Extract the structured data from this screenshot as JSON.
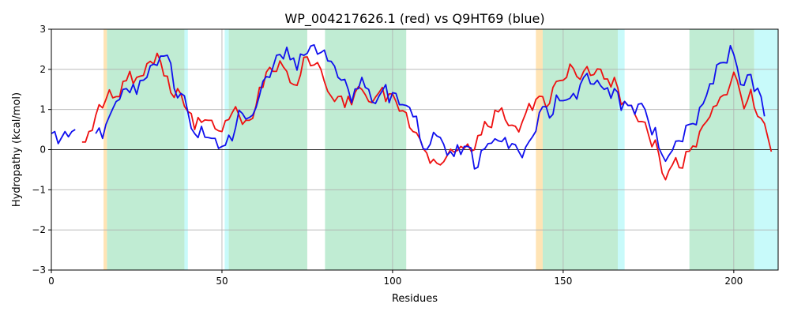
{
  "chart_data": {
    "type": "line",
    "title": "WP_004217626.1 (red) vs Q9HT69 (blue)",
    "xlabel": "Residues",
    "ylabel": "Hydropathy (kcal/mol)",
    "xlim": [
      0,
      213
    ],
    "ylim": [
      -3,
      3
    ],
    "xticks": [
      0,
      50,
      100,
      150,
      200
    ],
    "yticks": [
      -3,
      -2,
      -1,
      0,
      1,
      2,
      3
    ],
    "grid": true,
    "zero_line": true,
    "shaded_regions": [
      {
        "x0": 15.3,
        "x1": 16.3,
        "color": "#ffe4b5"
      },
      {
        "x0": 16.3,
        "x1": 39.0,
        "color": "#c0ecd3"
      },
      {
        "x0": 39.0,
        "x1": 40.0,
        "color": "#c8fafa"
      },
      {
        "x0": 50.8,
        "x1": 52.0,
        "color": "#c8fafa"
      },
      {
        "x0": 52.0,
        "x1": 75.0,
        "color": "#c0ecd3"
      },
      {
        "x0": 80.2,
        "x1": 104.0,
        "color": "#c0ecd3"
      },
      {
        "x0": 142.0,
        "x1": 144.0,
        "color": "#ffe4b5"
      },
      {
        "x0": 144.0,
        "x1": 166.0,
        "color": "#c0ecd3"
      },
      {
        "x0": 166.0,
        "x1": 168.0,
        "color": "#c8fafa"
      },
      {
        "x0": 187.0,
        "x1": 206.0,
        "color": "#c0ecd3"
      },
      {
        "x0": 206.0,
        "x1": 213.0,
        "color": "#c8fafa"
      }
    ],
    "series": [
      {
        "color": "#ee1111",
        "x_start": 9,
        "values": [
          0.19,
          0.19,
          0.45,
          0.48,
          0.85,
          1.12,
          1.04,
          1.25,
          1.49,
          1.29,
          1.32,
          1.32,
          1.7,
          1.72,
          1.95,
          1.64,
          1.8,
          1.83,
          1.85,
          2.14,
          2.2,
          2.13,
          2.4,
          2.2,
          1.84,
          1.83,
          1.42,
          1.3,
          1.52,
          1.38,
          1.08,
          0.95,
          0.9,
          0.5,
          0.8,
          0.68,
          0.74,
          0.73,
          0.73,
          0.52,
          0.47,
          0.45,
          0.72,
          0.75,
          0.92,
          1.07,
          0.86,
          0.63,
          0.73,
          0.73,
          0.78,
          1.1,
          1.55,
          1.55,
          1.93,
          2.05,
          1.95,
          1.95,
          2.21,
          2.06,
          1.95,
          1.67,
          1.62,
          1.6,
          1.86,
          2.3,
          2.31,
          2.09,
          2.11,
          2.17,
          2.0,
          1.7,
          1.45,
          1.33,
          1.2,
          1.32,
          1.33,
          1.05,
          1.33,
          1.12,
          1.42,
          1.57,
          1.5,
          1.37,
          1.2,
          1.17,
          1.31,
          1.42,
          1.55,
          1.2,
          1.39,
          1.39,
          1.2,
          0.96,
          0.97,
          0.92,
          0.55,
          0.45,
          0.42,
          0.27,
          0.02,
          -0.08,
          -0.34,
          -0.24,
          -0.34,
          -0.38,
          -0.3,
          -0.15,
          0.01,
          -0.06,
          -0.02,
          0.08,
          0.03,
          0.14,
          -0.04,
          0.0,
          0.35,
          0.37,
          0.7,
          0.58,
          0.55,
          0.98,
          0.94,
          1.04,
          0.75,
          0.6,
          0.61,
          0.58,
          0.44,
          0.69,
          0.9,
          1.15,
          0.98,
          1.25,
          1.33,
          1.32,
          1.05,
          1.15,
          1.55,
          1.7,
          1.72,
          1.73,
          1.8,
          2.13,
          2.02,
          1.82,
          1.75,
          1.95,
          2.07,
          1.85,
          1.87,
          2.01,
          2.0,
          1.76,
          1.76,
          1.56,
          1.8,
          1.54,
          1.12,
          1.2,
          1.1,
          1.1,
          0.88,
          0.7,
          0.7,
          0.68,
          0.37,
          0.07,
          0.24,
          -0.1,
          -0.58,
          -0.75,
          -0.52,
          -0.38,
          -0.2,
          -0.45,
          -0.46,
          -0.05,
          -0.04,
          0.09,
          0.07,
          0.45,
          0.6,
          0.7,
          0.82,
          1.07,
          1.1,
          1.3,
          1.36,
          1.37,
          1.64,
          1.93,
          1.72,
          1.38,
          1.02,
          1.22,
          1.5,
          1.05,
          0.83,
          0.78,
          0.65,
          0.3,
          -0.05
        ]
      },
      {
        "color": "#1010ee",
        "x_start": 0,
        "values": [
          0.4,
          0.45,
          0.15,
          0.3,
          0.45,
          0.32,
          0.45,
          0.5,
          null,
          null,
          null,
          null,
          null,
          0.4,
          0.54,
          0.28,
          0.63,
          0.83,
          1.02,
          1.2,
          1.25,
          1.5,
          1.52,
          1.42,
          1.63,
          1.38,
          1.72,
          1.73,
          1.8,
          2.09,
          2.13,
          2.1,
          2.33,
          2.33,
          2.35,
          2.15,
          1.52,
          1.29,
          1.4,
          1.34,
          0.94,
          0.53,
          0.4,
          0.3,
          0.58,
          0.31,
          0.3,
          0.28,
          0.28,
          0.03,
          0.08,
          0.11,
          0.36,
          0.22,
          0.55,
          0.98,
          0.9,
          0.76,
          0.8,
          0.86,
          1.05,
          1.35,
          1.7,
          1.82,
          1.8,
          2.07,
          2.35,
          2.37,
          2.26,
          2.55,
          2.24,
          2.28,
          1.98,
          2.38,
          2.35,
          2.4,
          2.58,
          2.61,
          2.38,
          2.42,
          2.48,
          2.21,
          2.2,
          2.08,
          1.8,
          1.73,
          1.75,
          1.5,
          1.17,
          1.51,
          1.52,
          1.8,
          1.55,
          1.5,
          1.19,
          1.15,
          1.33,
          1.47,
          1.62,
          1.17,
          1.42,
          1.4,
          1.12,
          1.12,
          1.1,
          1.05,
          0.82,
          0.83,
          0.28,
          0.02,
          0.0,
          0.13,
          0.43,
          0.34,
          0.3,
          0.13,
          -0.14,
          -0.05,
          -0.17,
          0.12,
          -0.12,
          0.08,
          0.08,
          0.04,
          -0.48,
          -0.44,
          -0.02,
          0.02,
          0.15,
          0.16,
          0.27,
          0.22,
          0.2,
          0.3,
          0.03,
          0.15,
          0.12,
          -0.05,
          -0.2,
          0.06,
          0.2,
          0.32,
          0.46,
          0.92,
          1.07,
          1.07,
          0.79,
          0.88,
          1.36,
          1.22,
          1.22,
          1.24,
          1.28,
          1.4,
          1.26,
          1.62,
          1.8,
          1.9,
          1.64,
          1.63,
          1.73,
          1.59,
          1.5,
          1.54,
          1.28,
          1.52,
          1.43,
          0.98,
          1.2,
          1.1,
          1.1,
          0.88,
          1.13,
          1.15,
          1.0,
          0.7,
          0.37,
          0.55,
          0.05,
          -0.13,
          -0.29,
          -0.14,
          -0.02,
          0.21,
          0.22,
          0.2,
          0.6,
          0.63,
          0.65,
          0.62,
          1.05,
          1.14,
          1.35,
          1.64,
          1.64,
          2.11,
          2.16,
          2.17,
          2.16,
          2.59,
          2.37,
          2.05,
          1.62,
          1.6,
          1.86,
          1.87,
          1.45,
          1.53,
          1.32,
          0.83
        ]
      }
    ]
  }
}
